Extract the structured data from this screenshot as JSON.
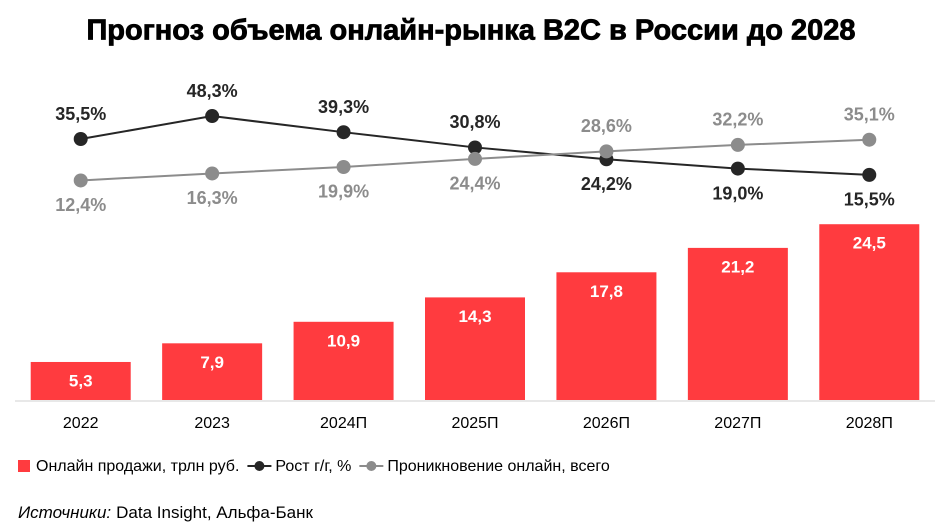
{
  "chart_data": {
    "type": "combo",
    "title": "Прогноз объема онлайн-рынка B2C в России до 2028",
    "categories": [
      "2022",
      "2023",
      "2024П",
      "2025П",
      "2026П",
      "2027П",
      "2028П"
    ],
    "series": [
      {
        "name": "Онлайн продажи, трлн руб.",
        "type": "bar",
        "color": "#ff3b3f",
        "values": [
          5.3,
          7.9,
          10.9,
          14.3,
          17.8,
          21.2,
          24.5
        ],
        "value_labels": [
          "5,3",
          "7,9",
          "10,9",
          "14,3",
          "17,8",
          "21,2",
          "24,5"
        ]
      },
      {
        "name": "Рост г/г, %",
        "type": "line",
        "axis": "y2",
        "color": "#262626",
        "values": [
          35.5,
          48.3,
          39.3,
          30.8,
          24.2,
          19.0,
          15.5
        ],
        "value_labels": [
          "35,5%",
          "48,3%",
          "39,3%",
          "30,8%",
          "24,2%",
          "19,0%",
          "15,5%"
        ]
      },
      {
        "name": "Проникновение онлайн, всего",
        "type": "line",
        "axis": "y2",
        "color": "#8c8c8c",
        "values": [
          12.4,
          16.3,
          19.9,
          24.4,
          28.6,
          32.2,
          35.1
        ],
        "value_labels": [
          "12,4%",
          "16,3%",
          "19,9%",
          "24,4%",
          "28,6%",
          "32,2%",
          "35,1%"
        ]
      }
    ],
    "ylim": [
      0,
      40
    ],
    "y2lim": [
      -110,
      50
    ],
    "source_label": "Источники:",
    "source": "Data Insight, Альфа-Банк"
  }
}
